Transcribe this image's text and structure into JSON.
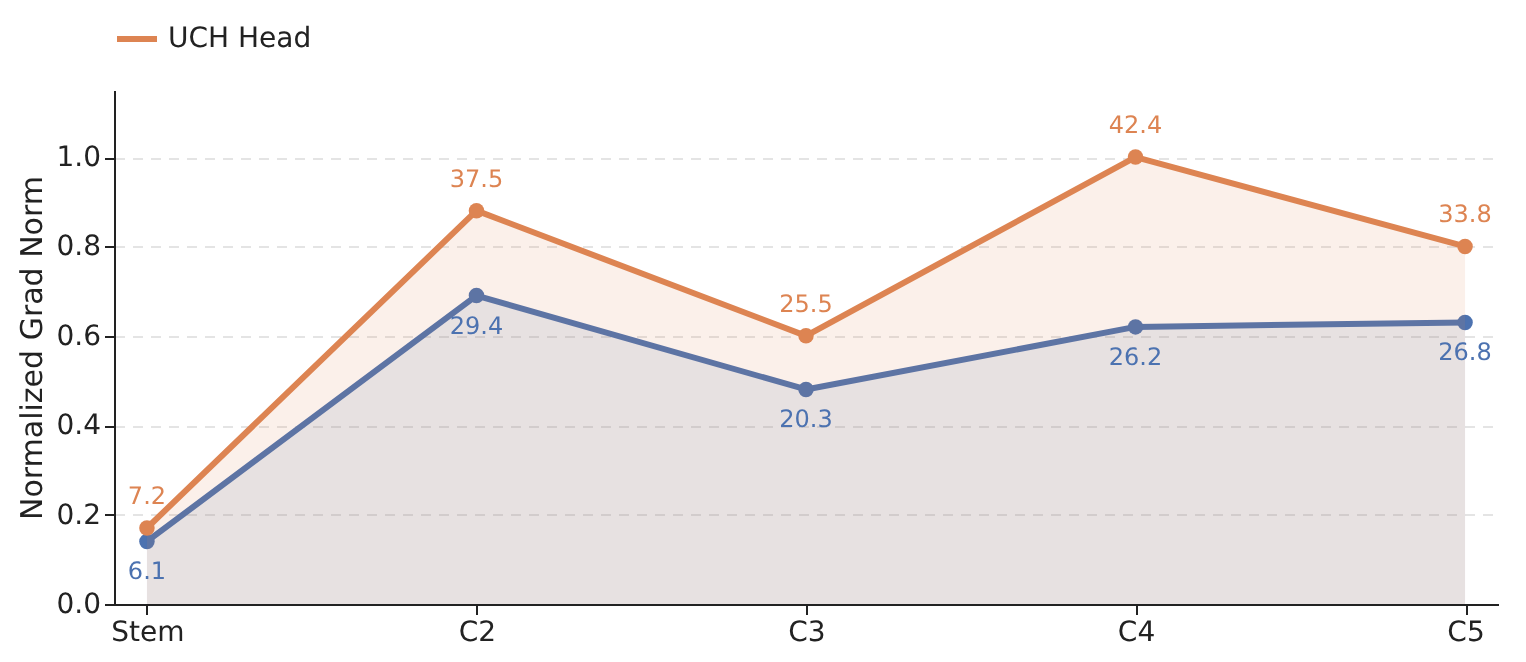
{
  "chart_data": {
    "type": "area",
    "ylabel": "Normalized Grad Norm",
    "categories": [
      "Stem",
      "C2",
      "C3",
      "C4",
      "C5"
    ],
    "series": [
      {
        "color": "#4c72b0",
        "values": [
          0.14,
          0.69,
          0.48,
          0.62,
          0.63
        ]
      },
      {
        "name": "UCH Head",
        "color": "#dd8452",
        "values": [
          0.17,
          0.88,
          0.6,
          1.0,
          0.8
        ]
      }
    ],
    "annotations": [
      {
        "text": "6.1",
        "x": "Stem",
        "y": 0.14
      },
      {
        "text": "29.4",
        "x": "C2",
        "y": 0.69
      },
      {
        "text": "20.3",
        "x": "C3",
        "y": 0.48
      },
      {
        "text": "26.2",
        "x": "C4",
        "y": 0.62
      },
      {
        "text": "26.8",
        "x": "C5",
        "y": 0.63
      },
      {
        "text": "7.2",
        "x": "Stem",
        "y": 0.17
      },
      {
        "text": "37.5",
        "x": "C2",
        "y": 0.88
      },
      {
        "text": "25.5",
        "x": "C3",
        "y": 0.6
      },
      {
        "text": "42.4",
        "x": "C4",
        "y": 1.0
      },
      {
        "text": "33.8",
        "x": "C5",
        "y": 0.8
      }
    ],
    "ylim": [
      0,
      1.15
    ],
    "yticks": [
      {
        "value": 0,
        "label": "0.0"
      },
      {
        "value": 0.2,
        "label": "0.2"
      },
      {
        "value": 0.4,
        "label": "0.4"
      },
      {
        "value": 0.6,
        "label": "0.6"
      },
      {
        "value": 0.8,
        "label": "0.8"
      },
      {
        "value": 1.0,
        "label": "1.0"
      }
    ],
    "grid": "y",
    "legend": "top",
    "marker": "circle",
    "line_style": "solid"
  }
}
